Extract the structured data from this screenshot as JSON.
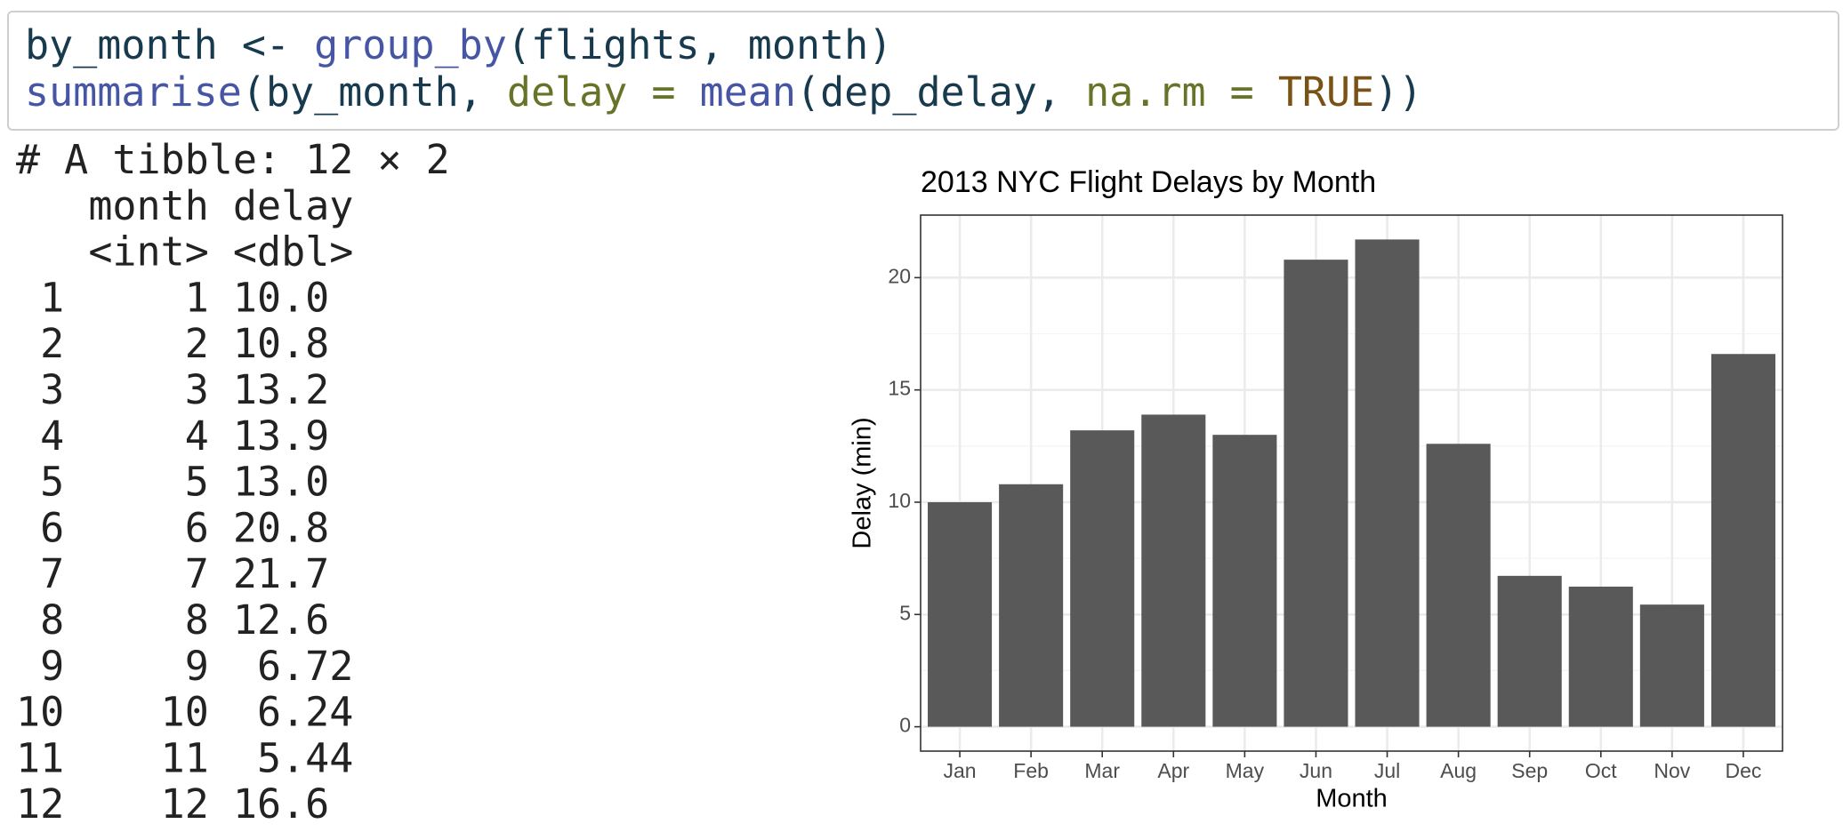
{
  "code": {
    "lines": [
      [
        {
          "text": "by_month <- ",
          "color": "#183a4e"
        },
        {
          "text": "group_by",
          "color": "#4656a4"
        },
        {
          "text": "(flights, month)",
          "color": "#183a4e"
        }
      ],
      [
        {
          "text": "summarise",
          "color": "#4656a4"
        },
        {
          "text": "(by_month, ",
          "color": "#183a4e"
        },
        {
          "text": "delay = ",
          "color": "#667428"
        },
        {
          "text": "mean",
          "color": "#4656a4"
        },
        {
          "text": "(dep_delay, ",
          "color": "#183a4e"
        },
        {
          "text": "na.rm = ",
          "color": "#667428"
        },
        {
          "text": "TRUE",
          "color": "#7a5216"
        },
        {
          "text": "))",
          "color": "#183a4e"
        }
      ]
    ]
  },
  "table": {
    "caption": "# A tibble: 12 × 2",
    "columns": [
      "month",
      "delay"
    ],
    "types": [
      "<int>",
      "<dbl>"
    ],
    "rows": [
      [
        "1",
        "1",
        "10.0"
      ],
      [
        "2",
        "2",
        "10.8"
      ],
      [
        "3",
        "3",
        "13.2"
      ],
      [
        "4",
        "4",
        "13.9"
      ],
      [
        "5",
        "5",
        "13.0"
      ],
      [
        "6",
        "6",
        "20.8"
      ],
      [
        "7",
        "7",
        "21.7"
      ],
      [
        "8",
        "8",
        "12.6"
      ],
      [
        "9",
        "9",
        "6.72"
      ],
      [
        "10",
        "10",
        "6.24"
      ],
      [
        "11",
        "11",
        "5.44"
      ],
      [
        "12",
        "12",
        "16.6"
      ]
    ]
  },
  "chart_data": {
    "type": "bar",
    "title": "2013 NYC Flight Delays by Month",
    "x_label": "Month",
    "y_label": "Delay (min)",
    "categories": [
      "Jan",
      "Feb",
      "Mar",
      "Apr",
      "May",
      "Jun",
      "Jul",
      "Aug",
      "Sep",
      "Oct",
      "Nov",
      "Dec"
    ],
    "values": [
      10.0,
      10.8,
      13.2,
      13.9,
      13.0,
      20.8,
      21.7,
      12.6,
      6.72,
      6.24,
      5.44,
      16.6
    ],
    "color": "#595959",
    "ylim": [
      -1.085,
      22.785
    ],
    "yticks": [
      0,
      5,
      10,
      15,
      20
    ],
    "minor_yticks": [
      2.5,
      7.5,
      12.5,
      17.5
    ],
    "grid": true
  }
}
